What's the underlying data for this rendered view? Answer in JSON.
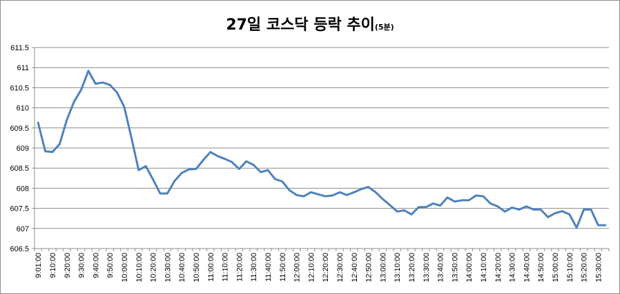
{
  "title": "27일 코스닥 등락 추이",
  "subtitle": "(5분)",
  "chart_data": {
    "type": "line",
    "title": "27일 코스닥 등락 추이(5분)",
    "xlabel": "",
    "ylabel": "",
    "ylim": [
      606.5,
      611.5
    ],
    "yticks": [
      "606.5",
      "607",
      "607.5",
      "608",
      "608.5",
      "609",
      "609.5",
      "610",
      "610.5",
      "611",
      "611.5"
    ],
    "grid": true,
    "line_color": "#4f81bd",
    "x_tick_labels": [
      "9:01:00",
      "9:10:00",
      "9:20:00",
      "9:30:00",
      "9:40:00",
      "9:50:00",
      "10:00:00",
      "10:10:00",
      "10:20:00",
      "10:30:00",
      "10:40:00",
      "10:50:00",
      "11:00:00",
      "11:10:00",
      "11:20:00",
      "11:30:00",
      "11:40:00",
      "11:50:00",
      "12:00:00",
      "12:10:00",
      "12:20:00",
      "12:30:00",
      "12:40:00",
      "12:50:00",
      "13:00:00",
      "13:10:00",
      "13:20:00",
      "13:30:00",
      "13:40:00",
      "13:50:00",
      "14:00:00",
      "14:10:00",
      "14:20:00",
      "14:30:00",
      "14:40:00",
      "14:50:00",
      "15:00:00",
      "15:10:00",
      "15:20:00",
      "15:30:00"
    ],
    "series": [
      {
        "name": "",
        "values": [
          609.63,
          608.92,
          608.9,
          609.1,
          609.7,
          610.15,
          610.45,
          610.92,
          610.6,
          610.63,
          610.57,
          610.38,
          610.02,
          609.25,
          608.45,
          608.55,
          608.22,
          607.87,
          607.87,
          608.18,
          608.38,
          608.47,
          608.48,
          608.7,
          608.9,
          608.8,
          608.73,
          608.65,
          608.48,
          608.67,
          608.58,
          608.4,
          608.45,
          608.23,
          608.17,
          607.95,
          607.83,
          607.8,
          607.9,
          607.85,
          607.8,
          607.82,
          607.9,
          607.83,
          607.9,
          607.98,
          608.03,
          607.9,
          607.73,
          607.58,
          607.42,
          607.45,
          607.35,
          607.53,
          607.53,
          607.62,
          607.57,
          607.77,
          607.67,
          607.7,
          607.7,
          607.82,
          607.8,
          607.62,
          607.55,
          607.42,
          607.52,
          607.47,
          607.55,
          607.47,
          607.47,
          607.28,
          607.38,
          607.43,
          607.35,
          607.02,
          607.47,
          607.47,
          607.08,
          607.08
        ]
      }
    ]
  }
}
